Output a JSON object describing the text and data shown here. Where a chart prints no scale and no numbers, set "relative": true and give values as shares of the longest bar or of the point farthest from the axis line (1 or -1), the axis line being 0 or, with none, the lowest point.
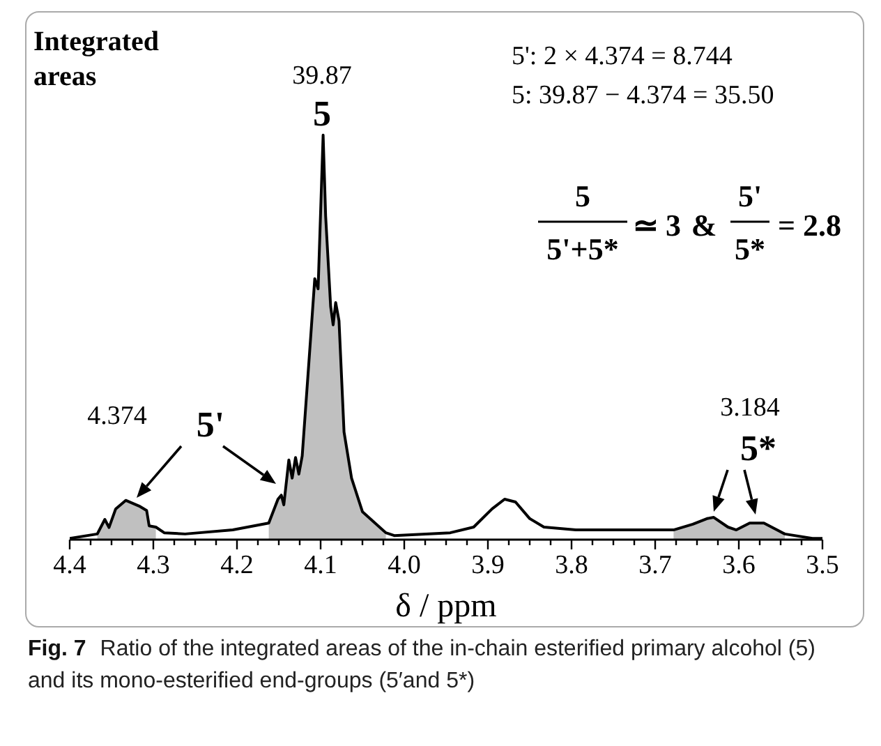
{
  "chart_data": {
    "type": "line",
    "relative": true,
    "xlabel": "δ / ppm",
    "xlim": [
      4.4,
      3.5
    ],
    "xticks": [
      {
        "value": 4.4,
        "label": "4.4"
      },
      {
        "value": 4.375,
        "label": null
      },
      {
        "value": 4.35,
        "label": null
      },
      {
        "value": 4.325,
        "label": null
      },
      {
        "value": 4.3,
        "label": "4.3"
      },
      {
        "value": 4.275,
        "label": null
      },
      {
        "value": 4.25,
        "label": null
      },
      {
        "value": 4.225,
        "label": null
      },
      {
        "value": 4.2,
        "label": "4.2"
      },
      {
        "value": 4.175,
        "label": null
      },
      {
        "value": 4.15,
        "label": null
      },
      {
        "value": 4.125,
        "label": null
      },
      {
        "value": 4.1,
        "label": "4.1"
      },
      {
        "value": 4.075,
        "label": null
      },
      {
        "value": 4.05,
        "label": null
      },
      {
        "value": 4.025,
        "label": null
      },
      {
        "value": 4.0,
        "label": "4.0"
      },
      {
        "value": 3.975,
        "label": null
      },
      {
        "value": 3.95,
        "label": null
      },
      {
        "value": 3.925,
        "label": null
      },
      {
        "value": 3.9,
        "label": "3.9"
      },
      {
        "value": 3.875,
        "label": null
      },
      {
        "value": 3.85,
        "label": null
      },
      {
        "value": 3.825,
        "label": null
      },
      {
        "value": 3.8,
        "label": "3.8"
      },
      {
        "value": 3.775,
        "label": null
      },
      {
        "value": 3.75,
        "label": null
      },
      {
        "value": 3.725,
        "label": null
      },
      {
        "value": 3.7,
        "label": "3.7"
      },
      {
        "value": 3.675,
        "label": null
      },
      {
        "value": 3.65,
        "label": null
      },
      {
        "value": 3.625,
        "label": null
      },
      {
        "value": 3.6,
        "label": "3.6"
      },
      {
        "value": 3.575,
        "label": null
      },
      {
        "value": 3.55,
        "label": null
      },
      {
        "value": 3.525,
        "label": null
      },
      {
        "value": 3.5,
        "label": "3.5"
      }
    ],
    "series": [
      {
        "type": "area",
        "color": "#c0c0c0",
        "x": [
          4.367,
          4.358,
          4.353,
          4.345,
          4.333,
          4.317,
          4.308,
          4.305,
          4.297
        ],
        "values": [
          0.014,
          0.05,
          0.03,
          0.076,
          0.097,
          0.083,
          0.072,
          0.034,
          0.031
        ]
      },
      {
        "type": "area",
        "color": "#c0c0c0",
        "x": [
          4.162,
          4.151,
          4.147,
          4.144,
          4.138,
          4.134,
          4.13,
          4.126,
          4.122,
          4.112,
          4.107,
          4.103,
          4.097,
          4.094,
          4.088,
          4.085,
          4.082,
          4.078,
          4.072,
          4.063,
          4.05,
          4.022
        ],
        "values": [
          0.041,
          0.1,
          0.11,
          0.086,
          0.197,
          0.152,
          0.203,
          0.162,
          0.207,
          0.497,
          0.645,
          0.62,
          1,
          0.8,
          0.576,
          0.531,
          0.586,
          0.541,
          0.266,
          0.152,
          0.069,
          0.017
        ]
      },
      {
        "type": "area",
        "color": "#c0c0c0",
        "x": [
          3.678,
          3.655,
          3.638,
          3.63,
          3.613,
          3.603,
          3.587,
          3.57,
          3.545
        ],
        "values": [
          0.024,
          0.038,
          0.052,
          0.055,
          0.031,
          0.024,
          0.041,
          0.041,
          0.014
        ]
      },
      {
        "type": "line",
        "color": "#000000",
        "x": [
          4.4,
          4.367,
          4.358,
          4.353,
          4.345,
          4.333,
          4.317,
          4.308,
          4.305,
          4.297,
          4.287,
          4.262,
          4.205,
          4.162,
          4.151,
          4.147,
          4.144,
          4.138,
          4.134,
          4.13,
          4.126,
          4.122,
          4.112,
          4.107,
          4.103,
          4.097,
          4.094,
          4.088,
          4.085,
          4.082,
          4.078,
          4.072,
          4.063,
          4.05,
          4.022,
          4.012,
          3.945,
          3.917,
          3.895,
          3.88,
          3.867,
          3.85,
          3.833,
          3.795,
          3.678,
          3.655,
          3.638,
          3.63,
          3.613,
          3.603,
          3.587,
          3.57,
          3.545,
          3.512,
          3.5
        ],
        "values": [
          0.003,
          0.014,
          0.05,
          0.03,
          0.076,
          0.097,
          0.083,
          0.072,
          0.034,
          0.031,
          0.017,
          0.014,
          0.024,
          0.041,
          0.1,
          0.11,
          0.086,
          0.197,
          0.152,
          0.203,
          0.162,
          0.207,
          0.497,
          0.645,
          0.62,
          1,
          0.8,
          0.576,
          0.531,
          0.586,
          0.541,
          0.266,
          0.152,
          0.069,
          0.017,
          0.01,
          0.017,
          0.031,
          0.076,
          0.1,
          0.093,
          0.052,
          0.031,
          0.024,
          0.024,
          0.038,
          0.052,
          0.055,
          0.031,
          0.024,
          0.041,
          0.041,
          0.014,
          0.003,
          0.003
        ]
      }
    ],
    "annotations": [
      "Integrated areas",
      "39.87",
      "5",
      "5': 2 × 4.374 = 8.744",
      "5:  39.87 − 4.374 = 35.50",
      "5",
      "5'+5*",
      "≃ 3",
      "&",
      "5'",
      "5*",
      "= 2.8",
      "4.374",
      "5'",
      "3.184",
      "5*",
      "Fig. 7",
      "Ratio of the integrated areas of the in-chain esterified primary alcohol (5) and its mono-esterified end-groups (5′and 5*)"
    ]
  }
}
